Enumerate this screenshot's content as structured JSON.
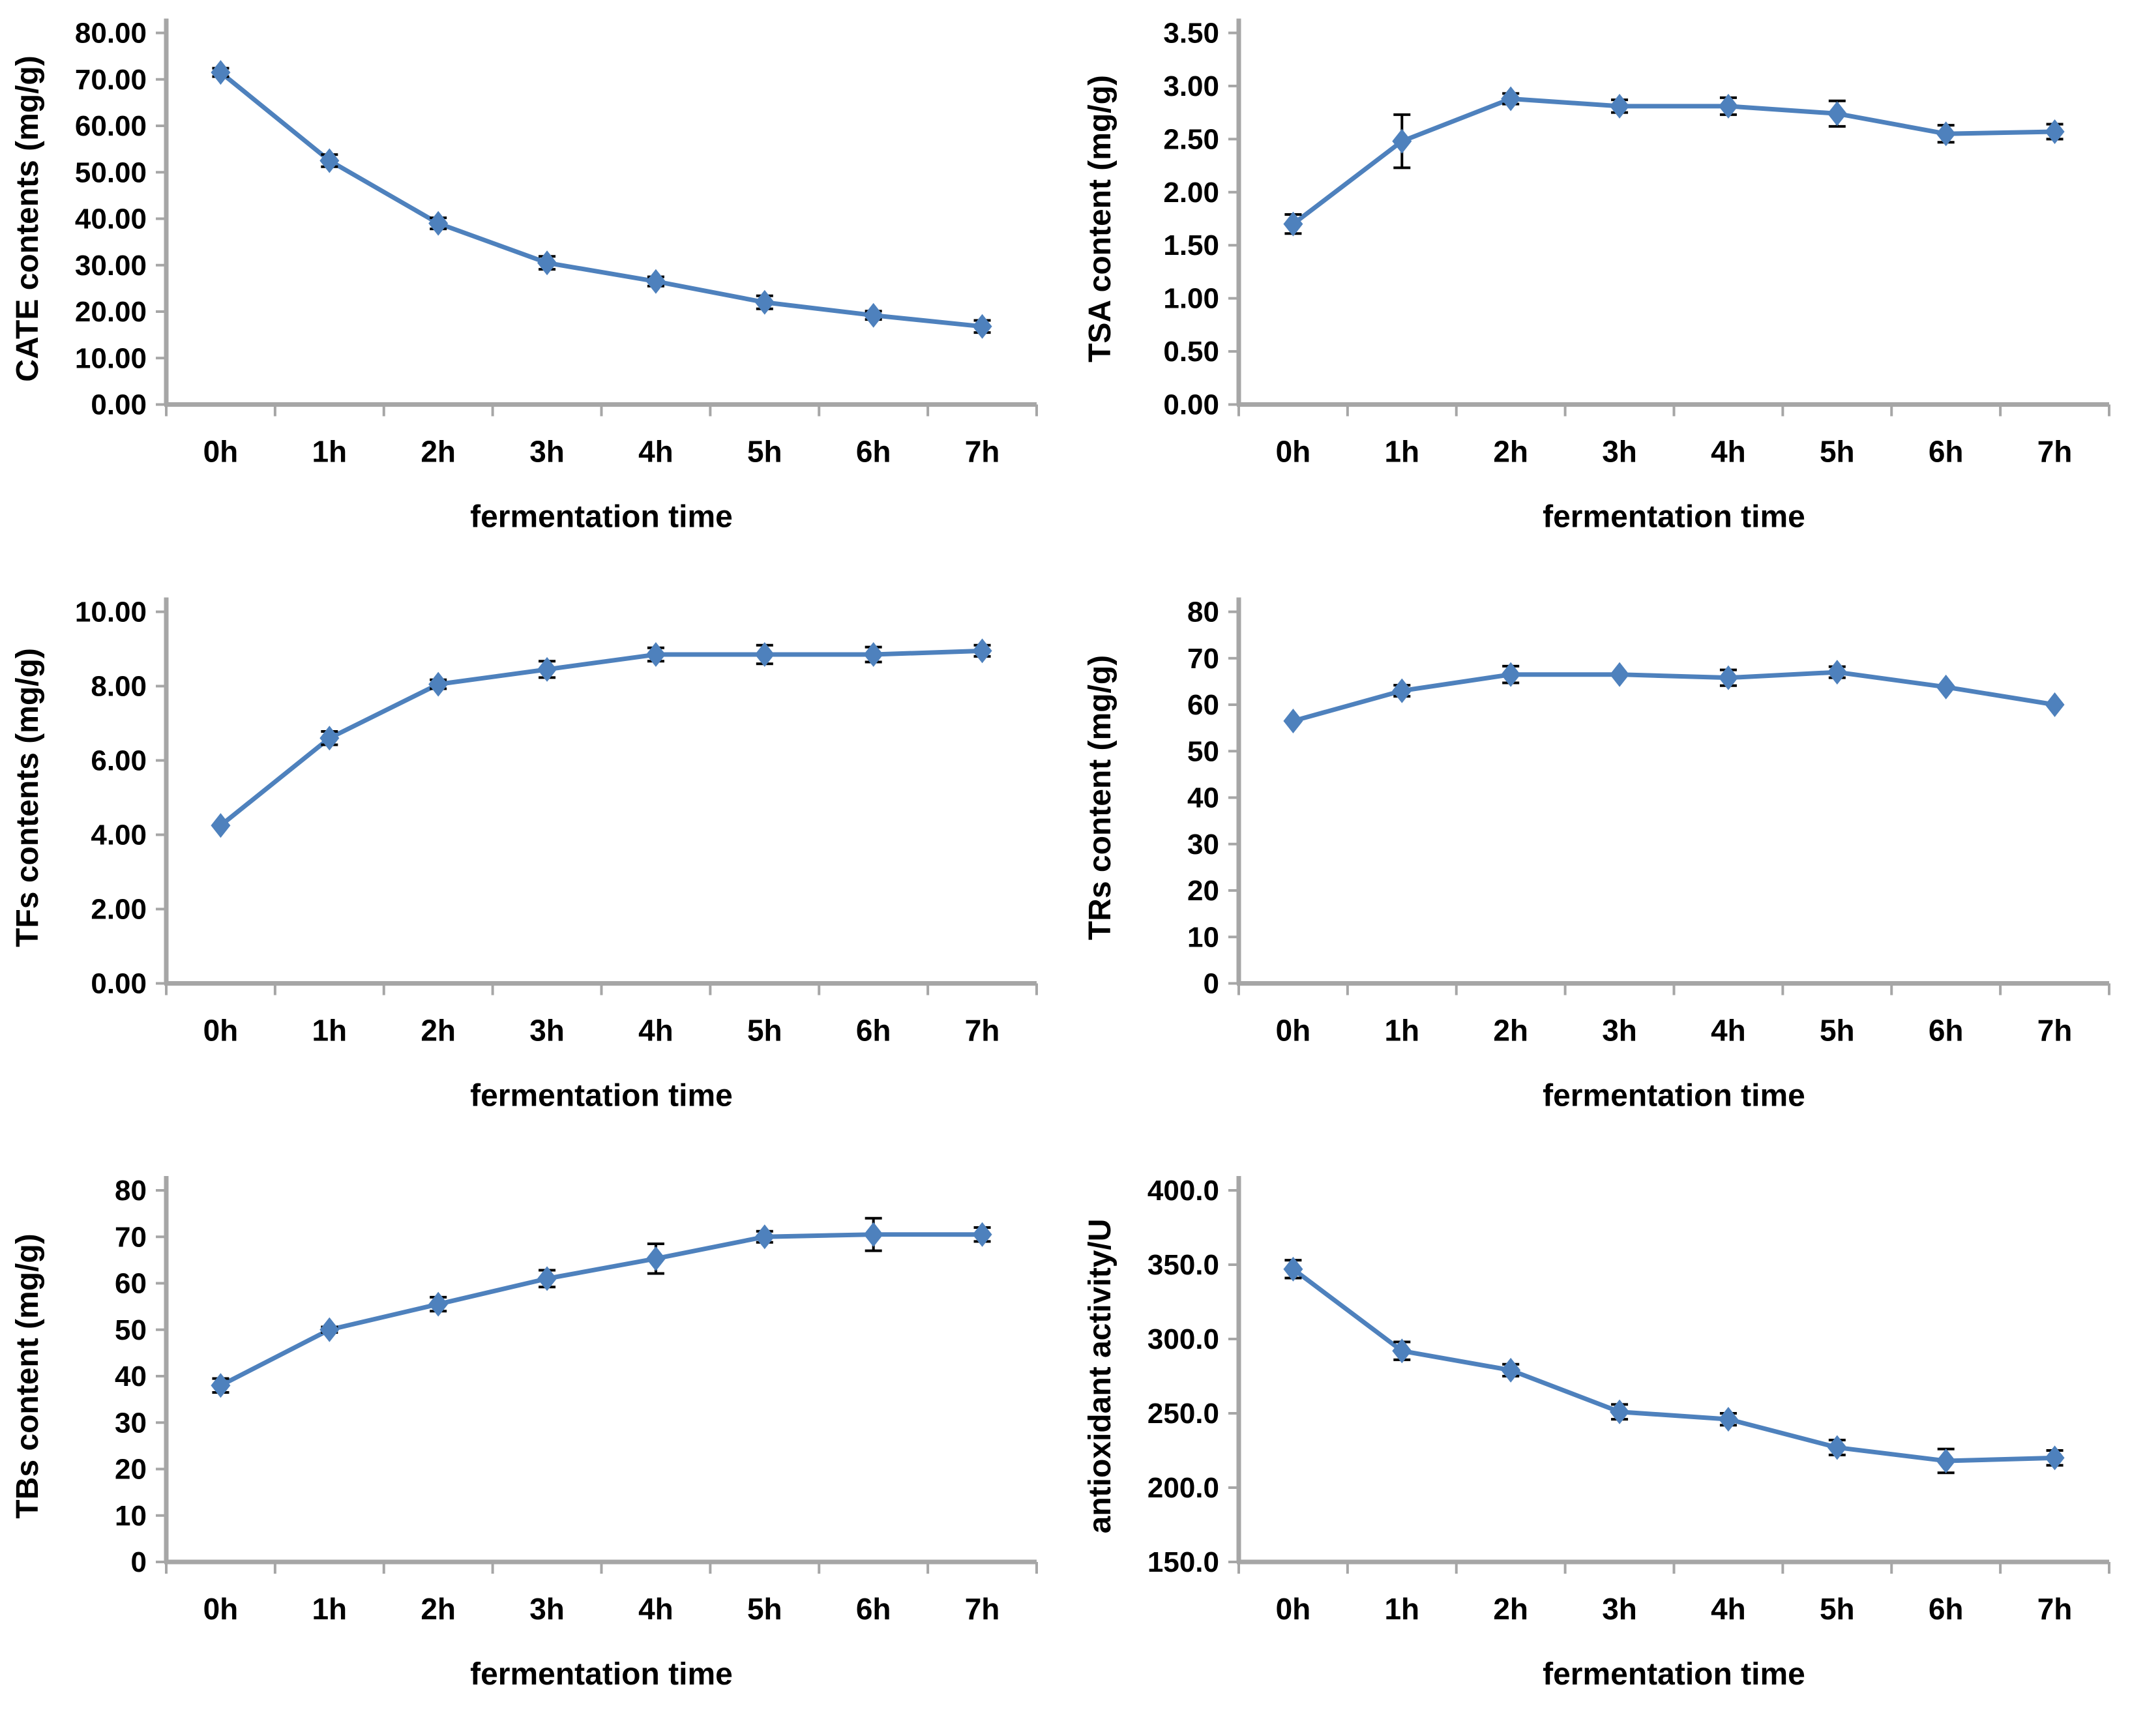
{
  "colors": {
    "series": "#4E81BD",
    "axis": "#A6A6A6",
    "error_bar": "#000000",
    "text": "#000000",
    "background": "#FFFFFF"
  },
  "chart_data": [
    {
      "id": "cate",
      "type": "line",
      "title": "",
      "ylabel": "CATE contents (mg/g)",
      "xlabel": "fermentation time",
      "categories": [
        "0h",
        "1h",
        "2h",
        "3h",
        "4h",
        "5h",
        "6h",
        "7h"
      ],
      "yticks": [
        "0.00",
        "10.00",
        "20.00",
        "30.00",
        "40.00",
        "50.00",
        "60.00",
        "70.00",
        "80.00"
      ],
      "ylim": [
        0,
        80
      ],
      "grid": false,
      "legend": false,
      "series": [
        {
          "values": [
            71.5,
            52.5,
            39.0,
            30.5,
            26.5,
            22.0,
            19.2,
            16.8
          ],
          "errors": [
            0.9,
            1.3,
            1.2,
            1.4,
            1.0,
            1.4,
            0.9,
            1.3
          ]
        }
      ]
    },
    {
      "id": "tsa",
      "type": "line",
      "title": "",
      "ylabel": "TSA content (mg/g)",
      "xlabel": "fermentation time",
      "categories": [
        "0h",
        "1h",
        "2h",
        "3h",
        "4h",
        "5h",
        "6h",
        "7h"
      ],
      "yticks": [
        "0.00",
        "0.50",
        "1.00",
        "1.50",
        "2.00",
        "2.50",
        "3.00",
        "3.50"
      ],
      "ylim": [
        0,
        3.5
      ],
      "grid": false,
      "legend": false,
      "series": [
        {
          "values": [
            1.7,
            2.48,
            2.88,
            2.81,
            2.81,
            2.74,
            2.55,
            2.57
          ],
          "errors": [
            0.09,
            0.25,
            0.05,
            0.06,
            0.08,
            0.12,
            0.08,
            0.07
          ]
        }
      ]
    },
    {
      "id": "tfs",
      "type": "line",
      "title": "",
      "ylabel": "TFs contents (mg/g)",
      "xlabel": "fermentation time",
      "categories": [
        "0h",
        "1h",
        "2h",
        "3h",
        "4h",
        "5h",
        "6h",
        "7h"
      ],
      "yticks": [
        "0.00",
        "2.00",
        "4.00",
        "6.00",
        "8.00",
        "10.00"
      ],
      "ylim": [
        0,
        10
      ],
      "grid": false,
      "legend": false,
      "series": [
        {
          "values": [
            4.25,
            6.6,
            8.05,
            8.45,
            8.85,
            8.85,
            8.85,
            8.95
          ],
          "errors": [
            0,
            0.18,
            0.12,
            0.22,
            0.18,
            0.25,
            0.2,
            0.15
          ]
        }
      ]
    },
    {
      "id": "trs",
      "type": "line",
      "title": "",
      "ylabel": "TRs content (mg/g)",
      "xlabel": "fermentation time",
      "categories": [
        "0h",
        "1h",
        "2h",
        "3h",
        "4h",
        "5h",
        "6h",
        "7h"
      ],
      "yticks": [
        "0",
        "10",
        "20",
        "30",
        "40",
        "50",
        "60",
        "70",
        "80"
      ],
      "ylim": [
        0,
        80
      ],
      "grid": false,
      "legend": false,
      "series": [
        {
          "values": [
            56.5,
            63.0,
            66.5,
            66.5,
            65.8,
            67.0,
            63.8,
            60.0
          ],
          "errors": [
            0,
            1.2,
            1.8,
            0,
            1.7,
            1.2,
            0,
            0
          ]
        }
      ]
    },
    {
      "id": "tbs",
      "type": "line",
      "title": "",
      "ylabel": "TBs content (mg/g)",
      "xlabel": "fermentation time",
      "categories": [
        "0h",
        "1h",
        "2h",
        "3h",
        "4h",
        "5h",
        "6h",
        "7h"
      ],
      "yticks": [
        "0",
        "10",
        "20",
        "30",
        "40",
        "50",
        "60",
        "70",
        "80"
      ],
      "ylim": [
        0,
        80
      ],
      "grid": false,
      "legend": false,
      "series": [
        {
          "values": [
            38.0,
            50.0,
            55.5,
            61.0,
            65.3,
            70.0,
            70.5,
            70.5
          ],
          "errors": [
            1.5,
            0.6,
            1.5,
            1.8,
            3.2,
            1.2,
            3.5,
            1.5
          ]
        }
      ]
    },
    {
      "id": "antiox",
      "type": "line",
      "title": "",
      "ylabel": "antioxidant activity/U",
      "xlabel": "fermentation time",
      "categories": [
        "0h",
        "1h",
        "2h",
        "3h",
        "4h",
        "5h",
        "6h",
        "7h"
      ],
      "yticks": [
        "150.0",
        "200.0",
        "250.0",
        "300.0",
        "350.0",
        "400.0"
      ],
      "ylim": [
        150,
        400
      ],
      "grid": false,
      "legend": false,
      "series": [
        {
          "values": [
            347,
            292,
            279,
            251,
            246,
            227,
            218,
            220
          ],
          "errors": [
            6,
            6,
            4,
            5,
            4,
            5,
            8,
            5
          ]
        }
      ]
    }
  ]
}
